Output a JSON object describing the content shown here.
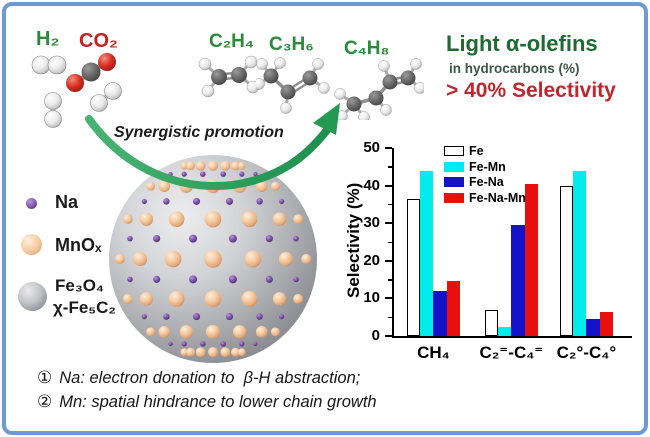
{
  "frame": {
    "border_color": "#6d9bd1"
  },
  "reactants": {
    "h2_label": "H₂",
    "co2_label": "CO₂"
  },
  "products": {
    "c2h4_label": "C₂H₄",
    "c3h6_label": "C₃H₆",
    "c4h8_label": "C₄H₈"
  },
  "headline": {
    "title": "Light α-olefins",
    "subtitle": "in hydrocarbons (%)",
    "selectivity": "> 40% Selectivity",
    "title_color": "#1d6b33",
    "selectivity_color": "#c0272d"
  },
  "arrow_label": "Synergistic promotion",
  "catalyst_legend": {
    "na": "Na",
    "mnox": "MnOₓ",
    "fe3o4": "Fe₃O₄",
    "fe5c2": "χ-Fe₅C₂"
  },
  "catalyst_sphere": {
    "base_color": "#b5b6ba",
    "mnox_dot_color": "#f6cda4",
    "na_dot_color": "#8256ad"
  },
  "footnotes": [
    {
      "num": "①",
      "text": "Na: electron donation to  β-H abstraction;"
    },
    {
      "num": "②",
      "text": "Mn: spatial hindrance to lower chain growth"
    }
  ],
  "chart_data": {
    "type": "bar",
    "title": "",
    "xlabel": "",
    "ylabel": "Selectivity (%)",
    "ylim": [
      0,
      50
    ],
    "yticks": [
      0,
      10,
      20,
      30,
      40,
      50
    ],
    "grid": false,
    "legend_position": "top-left",
    "categories": [
      "CH₄",
      "C₂⁼-C₄⁼",
      "C₂°-C₄°"
    ],
    "series": [
      {
        "name": "Fe",
        "color": "#ffffff",
        "values": [
          36.5,
          7,
          40
        ]
      },
      {
        "name": "Fe-Mn",
        "color": "#00ecec",
        "values": [
          44,
          2.5,
          44
        ]
      },
      {
        "name": "Fe-Na",
        "color": "#1411cb",
        "values": [
          12,
          29.5,
          4.5
        ]
      },
      {
        "name": "Fe-Na-Mn",
        "color": "#e90f0f",
        "values": [
          14.5,
          40.5,
          6.5
        ]
      }
    ]
  }
}
